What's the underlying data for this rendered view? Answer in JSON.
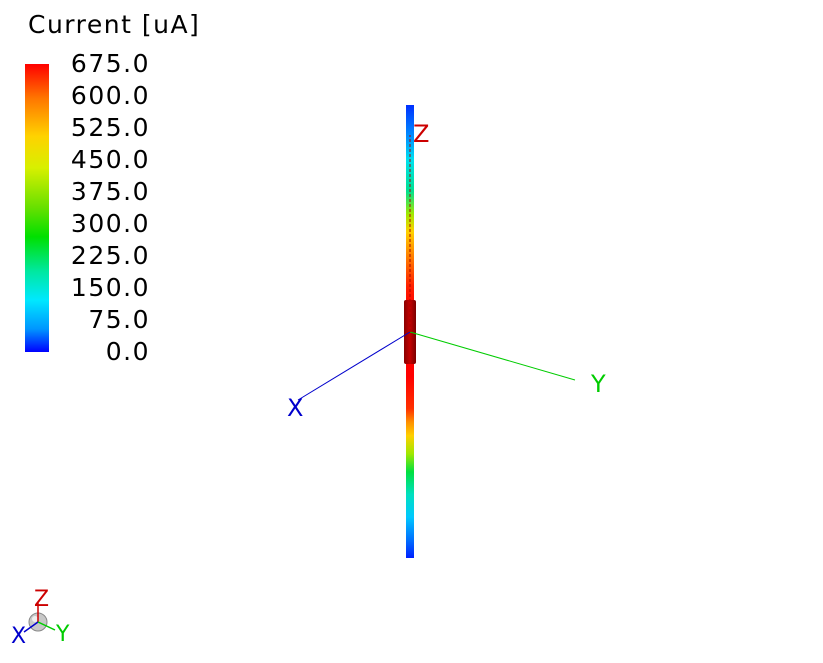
{
  "legend": {
    "title": "Current [uA]",
    "ticks": [
      "675.0",
      "600.0",
      "525.0",
      "450.0",
      "375.0",
      "300.0",
      "225.0",
      "150.0",
      "75.0",
      "0.0"
    ],
    "colormap": [
      "#ff0000",
      "#ff7700",
      "#ffd200",
      "#d8f000",
      "#66e000",
      "#00e000",
      "#00e8a0",
      "#00e8ff",
      "#0096ff",
      "#0000ff"
    ]
  },
  "axes": {
    "x_label": "X",
    "y_label": "Y",
    "z_label": "Z",
    "x_color": "#0000cc",
    "y_color": "#00cc00",
    "z_color": "#cc0000"
  },
  "triad": {
    "x_label": "X",
    "y_label": "Y",
    "z_label": "Z"
  }
}
